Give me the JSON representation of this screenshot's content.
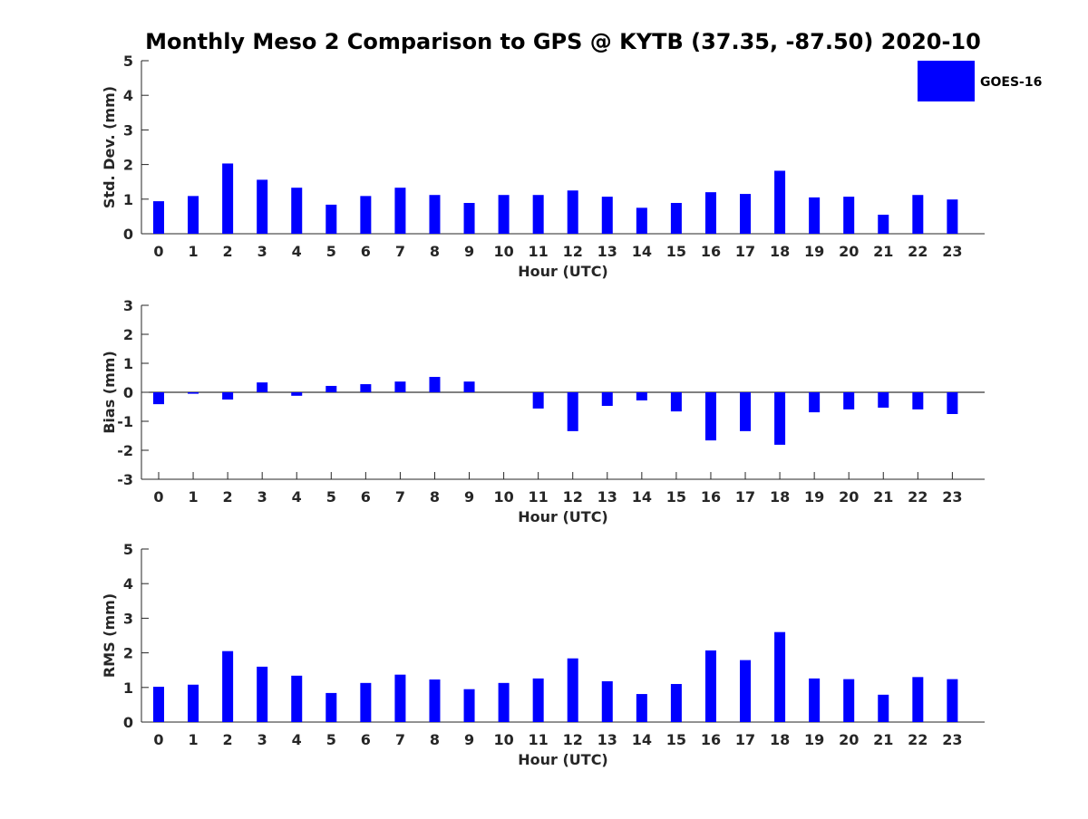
{
  "title": "Monthly Meso 2 Comparison to GPS @ KYTB (37.35, -87.50) 2020-10",
  "legend": {
    "label": "GOES-16",
    "color": "#0000ff",
    "position": "top-right"
  },
  "chart_data": [
    {
      "type": "bar",
      "name": "std-dev",
      "title": "",
      "xlabel": "Hour (UTC)",
      "ylabel": "Std. Dev. (mm)",
      "ylim": [
        0,
        5
      ],
      "yticks": [
        "0",
        "1",
        "2",
        "3",
        "4",
        "5"
      ],
      "categories": [
        "0",
        "1",
        "2",
        "3",
        "4",
        "5",
        "6",
        "7",
        "8",
        "9",
        "10",
        "11",
        "12",
        "13",
        "14",
        "15",
        "16",
        "17",
        "18",
        "19",
        "20",
        "21",
        "22",
        "23"
      ],
      "series": [
        {
          "name": "GOES-16",
          "color": "#0000ff",
          "values": [
            0.94,
            1.09,
            2.03,
            1.56,
            1.33,
            0.84,
            1.09,
            1.33,
            1.12,
            0.89,
            1.12,
            1.12,
            1.25,
            1.07,
            0.75,
            0.89,
            1.2,
            1.15,
            1.82,
            1.05,
            1.07,
            0.55,
            1.12,
            0.99
          ]
        }
      ]
    },
    {
      "type": "bar",
      "name": "bias",
      "title": "",
      "xlabel": "Hour (UTC)",
      "ylabel": "Bias (mm)",
      "ylim": [
        -3,
        3
      ],
      "yticks": [
        "-3",
        "-2",
        "-1",
        "0",
        "1",
        "2",
        "3"
      ],
      "categories": [
        "0",
        "1",
        "2",
        "3",
        "4",
        "5",
        "6",
        "7",
        "8",
        "9",
        "10",
        "11",
        "12",
        "13",
        "14",
        "15",
        "16",
        "17",
        "18",
        "19",
        "20",
        "21",
        "22",
        "23"
      ],
      "series": [
        {
          "name": "GOES-16",
          "color": "#0000ff",
          "values": [
            -0.41,
            -0.05,
            -0.25,
            0.34,
            -0.12,
            0.22,
            0.28,
            0.37,
            0.53,
            0.37,
            0.0,
            -0.56,
            -1.34,
            -0.47,
            -0.28,
            -0.66,
            -1.66,
            -1.34,
            -1.81,
            -0.69,
            -0.59,
            -0.53,
            -0.59,
            -0.75
          ]
        }
      ]
    },
    {
      "type": "bar",
      "name": "rms",
      "title": "",
      "xlabel": "Hour (UTC)",
      "ylabel": "RMS (mm)",
      "ylim": [
        0,
        5
      ],
      "yticks": [
        "0",
        "1",
        "2",
        "3",
        "4",
        "5"
      ],
      "categories": [
        "0",
        "1",
        "2",
        "3",
        "4",
        "5",
        "6",
        "7",
        "8",
        "9",
        "10",
        "11",
        "12",
        "13",
        "14",
        "15",
        "16",
        "17",
        "18",
        "19",
        "20",
        "21",
        "22",
        "23"
      ],
      "series": [
        {
          "name": "GOES-16",
          "color": "#0000ff",
          "values": [
            1.02,
            1.08,
            2.05,
            1.6,
            1.34,
            0.84,
            1.13,
            1.37,
            1.23,
            0.95,
            1.13,
            1.26,
            1.84,
            1.18,
            0.81,
            1.1,
            2.07,
            1.79,
            2.6,
            1.26,
            1.24,
            0.79,
            1.3,
            1.24
          ]
        }
      ]
    }
  ]
}
